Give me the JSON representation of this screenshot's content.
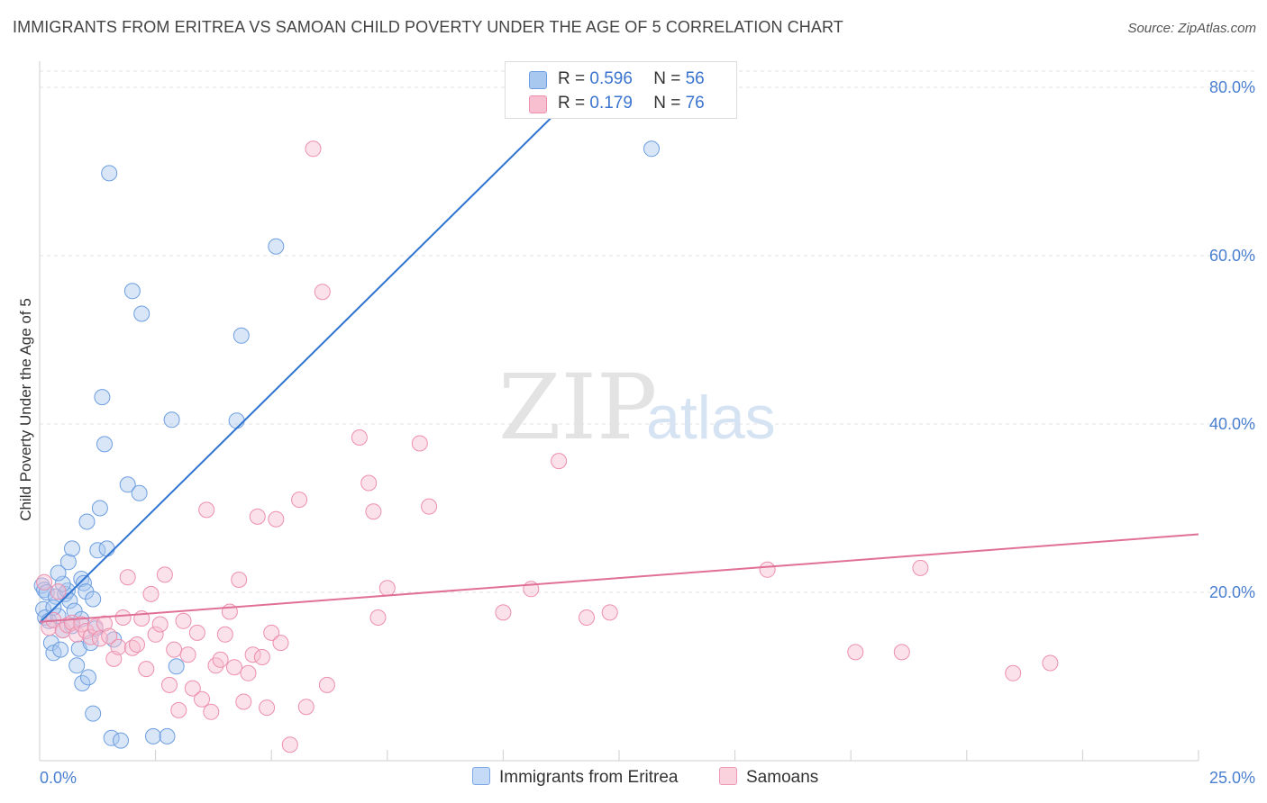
{
  "header": {
    "title": "IMMIGRANTS FROM ERITREA VS SAMOAN CHILD POVERTY UNDER THE AGE OF 5 CORRELATION CHART",
    "source": "Source: ZipAtlas.com"
  },
  "watermark": {
    "part1": "ZIP",
    "part2": "atlas"
  },
  "legend": {
    "rows": [
      {
        "r_label": "R = ",
        "r_value": "0.596",
        "n_label": "N = ",
        "n_value": "56",
        "color": "#a9c8f0",
        "border": "#6d9ee0"
      },
      {
        "r_label": "R = ",
        "r_value": "0.179",
        "n_label": "N = ",
        "n_value": "76",
        "color": "#f7bfd0",
        "border": "#ec8fae"
      }
    ]
  },
  "bottom_legend": [
    {
      "label": "Immigrants from Eritrea",
      "color": "#c5daf6",
      "border": "#7ea8e6"
    },
    {
      "label": "Samoans",
      "color": "#fad2de",
      "border": "#ee9ab5"
    }
  ],
  "chart_data": {
    "type": "scatter",
    "title": "IMMIGRANTS FROM ERITREA VS SAMOAN CHILD POVERTY UNDER THE AGE OF 5 CORRELATION CHART",
    "xlabel": "",
    "ylabel": "Child Poverty Under the Age of 5",
    "xlim": [
      0,
      25
    ],
    "ylim": [
      0,
      80
    ],
    "x_tick_labels": [
      {
        "value": 0,
        "label": "0.0%"
      },
      {
        "value": 25,
        "label": "25.0%"
      }
    ],
    "y_tick_labels": [
      {
        "value": 20,
        "label": "20.0%"
      },
      {
        "value": 40,
        "label": "40.0%"
      },
      {
        "value": 60,
        "label": "60.0%"
      },
      {
        "value": 80,
        "label": "80.0%"
      }
    ],
    "grid": "horizontal dashed",
    "series": [
      {
        "name": "Immigrants from Eritrea",
        "color": "#a9c8f0",
        "stroke": "#6d9ee0",
        "trend": {
          "x": [
            0,
            11.7
          ],
          "y": [
            16.4,
            80
          ],
          "color": "#2f74d0"
        },
        "points": [
          [
            0.05,
            20.8
          ],
          [
            0.08,
            18.0
          ],
          [
            0.1,
            20.3
          ],
          [
            0.12,
            17.0
          ],
          [
            0.15,
            20.0
          ],
          [
            0.2,
            16.6
          ],
          [
            0.25,
            14.0
          ],
          [
            0.3,
            12.8
          ],
          [
            0.35,
            19.5
          ],
          [
            0.4,
            17.2
          ],
          [
            0.45,
            13.2
          ],
          [
            0.5,
            15.5
          ],
          [
            0.55,
            19.8
          ],
          [
            0.6,
            20.2
          ],
          [
            0.62,
            23.6
          ],
          [
            0.65,
            19.0
          ],
          [
            0.7,
            25.2
          ],
          [
            0.75,
            17.8
          ],
          [
            0.8,
            11.3
          ],
          [
            0.85,
            13.3
          ],
          [
            0.9,
            21.6
          ],
          [
            0.92,
            9.2
          ],
          [
            0.95,
            21.1
          ],
          [
            1.0,
            20.1
          ],
          [
            1.02,
            28.4
          ],
          [
            1.05,
            9.9
          ],
          [
            1.1,
            14.0
          ],
          [
            1.15,
            5.6
          ],
          [
            1.2,
            15.7
          ],
          [
            1.25,
            25.0
          ],
          [
            1.3,
            30.0
          ],
          [
            1.35,
            43.2
          ],
          [
            1.4,
            37.6
          ],
          [
            1.45,
            25.2
          ],
          [
            1.5,
            69.8
          ],
          [
            1.55,
            2.7
          ],
          [
            1.6,
            14.4
          ],
          [
            1.75,
            2.4
          ],
          [
            1.9,
            32.8
          ],
          [
            2.0,
            55.8
          ],
          [
            2.15,
            31.8
          ],
          [
            2.2,
            53.1
          ],
          [
            2.45,
            2.9
          ],
          [
            2.75,
            2.9
          ],
          [
            2.85,
            40.5
          ],
          [
            2.95,
            11.2
          ],
          [
            4.25,
            40.4
          ],
          [
            4.35,
            50.5
          ],
          [
            5.1,
            61.1
          ],
          [
            13.2,
            72.7
          ],
          [
            0.3,
            18.2
          ],
          [
            0.5,
            21.0
          ],
          [
            0.7,
            16.0
          ],
          [
            1.15,
            19.2
          ],
          [
            0.4,
            22.3
          ],
          [
            0.9,
            16.8
          ]
        ]
      },
      {
        "name": "Samoans",
        "color": "#f7bfd0",
        "stroke": "#ec8fae",
        "trend": {
          "x": [
            0,
            25
          ],
          "y": [
            16.5,
            26.9
          ],
          "color": "#e07098"
        },
        "points": [
          [
            0.1,
            21.2
          ],
          [
            0.2,
            15.8
          ],
          [
            0.3,
            16.7
          ],
          [
            0.4,
            20.1
          ],
          [
            0.5,
            15.5
          ],
          [
            0.6,
            16.1
          ],
          [
            0.7,
            16.4
          ],
          [
            0.8,
            15.0
          ],
          [
            0.9,
            16.2
          ],
          [
            1.0,
            15.4
          ],
          [
            1.1,
            14.7
          ],
          [
            1.2,
            15.9
          ],
          [
            1.3,
            14.5
          ],
          [
            1.4,
            16.3
          ],
          [
            1.5,
            14.8
          ],
          [
            1.6,
            12.1
          ],
          [
            1.7,
            13.5
          ],
          [
            1.8,
            17.0
          ],
          [
            1.9,
            21.8
          ],
          [
            2.0,
            13.4
          ],
          [
            2.1,
            13.8
          ],
          [
            2.2,
            16.9
          ],
          [
            2.3,
            10.9
          ],
          [
            2.4,
            19.8
          ],
          [
            2.5,
            15.0
          ],
          [
            2.6,
            16.2
          ],
          [
            2.7,
            22.1
          ],
          [
            2.8,
            9.0
          ],
          [
            2.9,
            13.2
          ],
          [
            3.0,
            6.0
          ],
          [
            3.1,
            16.6
          ],
          [
            3.2,
            12.6
          ],
          [
            3.3,
            8.6
          ],
          [
            3.4,
            15.2
          ],
          [
            3.5,
            7.3
          ],
          [
            3.6,
            29.8
          ],
          [
            3.7,
            5.8
          ],
          [
            3.8,
            11.3
          ],
          [
            3.9,
            12.0
          ],
          [
            4.0,
            15.0
          ],
          [
            4.1,
            17.7
          ],
          [
            4.2,
            11.1
          ],
          [
            4.3,
            21.5
          ],
          [
            4.4,
            7.0
          ],
          [
            4.5,
            10.4
          ],
          [
            4.6,
            12.6
          ],
          [
            4.7,
            29.0
          ],
          [
            4.8,
            12.3
          ],
          [
            4.9,
            6.3
          ],
          [
            5.0,
            15.2
          ],
          [
            5.1,
            28.7
          ],
          [
            5.2,
            14.0
          ],
          [
            5.4,
            1.9
          ],
          [
            5.6,
            31.0
          ],
          [
            5.75,
            6.4
          ],
          [
            5.9,
            72.7
          ],
          [
            6.1,
            55.7
          ],
          [
            6.2,
            9.0
          ],
          [
            6.9,
            38.4
          ],
          [
            7.1,
            33.0
          ],
          [
            7.2,
            29.6
          ],
          [
            7.3,
            17.0
          ],
          [
            7.5,
            20.5
          ],
          [
            8.2,
            37.7
          ],
          [
            8.4,
            30.2
          ],
          [
            10.0,
            17.6
          ],
          [
            10.6,
            20.4
          ],
          [
            11.2,
            35.6
          ],
          [
            11.8,
            17.0
          ],
          [
            12.3,
            17.6
          ],
          [
            15.7,
            22.7
          ],
          [
            17.6,
            12.9
          ],
          [
            18.6,
            12.9
          ],
          [
            19.0,
            22.9
          ],
          [
            21.0,
            10.4
          ],
          [
            21.8,
            11.6
          ]
        ]
      }
    ]
  }
}
